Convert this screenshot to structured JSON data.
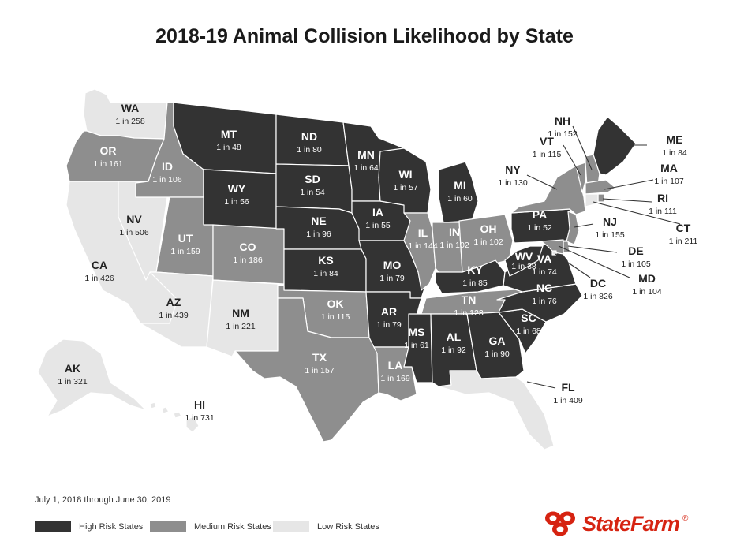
{
  "title": "2018-19 Animal Collision Likelihood by State",
  "date_range": "July 1, 2018 through June 30, 2019",
  "risk_colors": {
    "high": "#333333",
    "medium": "#8e8e8e",
    "low": "#e6e6e6"
  },
  "legend": [
    {
      "label": "High Risk States",
      "risk": "high"
    },
    {
      "label": "Medium Risk States",
      "risk": "medium"
    },
    {
      "label": "Low Risk States",
      "risk": "low"
    }
  ],
  "brand": {
    "name": "State Farm",
    "wordmark": "StateFarm",
    "registered": "®",
    "logo_color": "#d62311"
  },
  "states": [
    {
      "abbr": "WA",
      "value": "1 in 258",
      "risk": "low"
    },
    {
      "abbr": "OR",
      "value": "1 in 161",
      "risk": "medium"
    },
    {
      "abbr": "CA",
      "value": "1 in 426",
      "risk": "low"
    },
    {
      "abbr": "NV",
      "value": "1 in 506",
      "risk": "low"
    },
    {
      "abbr": "ID",
      "value": "1 in 106",
      "risk": "medium"
    },
    {
      "abbr": "MT",
      "value": "1 in 48",
      "risk": "high"
    },
    {
      "abbr": "WY",
      "value": "1 in 56",
      "risk": "high"
    },
    {
      "abbr": "UT",
      "value": "1 in 159",
      "risk": "medium"
    },
    {
      "abbr": "CO",
      "value": "1 in 186",
      "risk": "medium"
    },
    {
      "abbr": "AZ",
      "value": "1 in 439",
      "risk": "low"
    },
    {
      "abbr": "NM",
      "value": "1 in 221",
      "risk": "low"
    },
    {
      "abbr": "ND",
      "value": "1 in 80",
      "risk": "high"
    },
    {
      "abbr": "SD",
      "value": "1 in 54",
      "risk": "high"
    },
    {
      "abbr": "NE",
      "value": "1 in 96",
      "risk": "high"
    },
    {
      "abbr": "KS",
      "value": "1 in 84",
      "risk": "high"
    },
    {
      "abbr": "OK",
      "value": "1 in 115",
      "risk": "medium"
    },
    {
      "abbr": "TX",
      "value": "1 in 157",
      "risk": "medium"
    },
    {
      "abbr": "MN",
      "value": "1 in 64",
      "risk": "high"
    },
    {
      "abbr": "IA",
      "value": "1 in 55",
      "risk": "high"
    },
    {
      "abbr": "MO",
      "value": "1 in 79",
      "risk": "high"
    },
    {
      "abbr": "AR",
      "value": "1 in 79",
      "risk": "high"
    },
    {
      "abbr": "LA",
      "value": "1 in 169",
      "risk": "medium"
    },
    {
      "abbr": "WI",
      "value": "1 in 57",
      "risk": "high"
    },
    {
      "abbr": "IL",
      "value": "1 in 144",
      "risk": "medium"
    },
    {
      "abbr": "MI",
      "value": "1 in 60",
      "risk": "high"
    },
    {
      "abbr": "IN",
      "value": "1 in 102",
      "risk": "medium"
    },
    {
      "abbr": "OH",
      "value": "1 in 102",
      "risk": "medium"
    },
    {
      "abbr": "KY",
      "value": "1 in 85",
      "risk": "high"
    },
    {
      "abbr": "TN",
      "value": "1 in 123",
      "risk": "medium"
    },
    {
      "abbr": "MS",
      "value": "1 in 61",
      "risk": "high"
    },
    {
      "abbr": "AL",
      "value": "1 in 92",
      "risk": "high"
    },
    {
      "abbr": "GA",
      "value": "1 in 90",
      "risk": "high"
    },
    {
      "abbr": "FL",
      "value": "1 in 409",
      "risk": "low"
    },
    {
      "abbr": "SC",
      "value": "1 in 68",
      "risk": "high"
    },
    {
      "abbr": "NC",
      "value": "1 in 76",
      "risk": "high"
    },
    {
      "abbr": "VA",
      "value": "1 in 74",
      "risk": "high"
    },
    {
      "abbr": "WV",
      "value": "1 in 38",
      "risk": "high"
    },
    {
      "abbr": "PA",
      "value": "1 in 52",
      "risk": "high"
    },
    {
      "abbr": "NY",
      "value": "1 in 130",
      "risk": "medium"
    },
    {
      "abbr": "VT",
      "value": "1 in 115",
      "risk": "medium"
    },
    {
      "abbr": "NH",
      "value": "1 in 152",
      "risk": "medium"
    },
    {
      "abbr": "ME",
      "value": "1 in 84",
      "risk": "high"
    },
    {
      "abbr": "MA",
      "value": "1 in 107",
      "risk": "medium"
    },
    {
      "abbr": "RI",
      "value": "1 in 111",
      "risk": "medium"
    },
    {
      "abbr": "CT",
      "value": "1 in 211",
      "risk": "low"
    },
    {
      "abbr": "NJ",
      "value": "1 in 155",
      "risk": "medium"
    },
    {
      "abbr": "DE",
      "value": "1 in 105",
      "risk": "medium"
    },
    {
      "abbr": "MD",
      "value": "1 in 104",
      "risk": "medium"
    },
    {
      "abbr": "DC",
      "value": "1 in 826",
      "risk": "low"
    },
    {
      "abbr": "AK",
      "value": "1 in 321",
      "risk": "low"
    },
    {
      "abbr": "HI",
      "value": "1 in 731",
      "risk": "low"
    }
  ]
}
